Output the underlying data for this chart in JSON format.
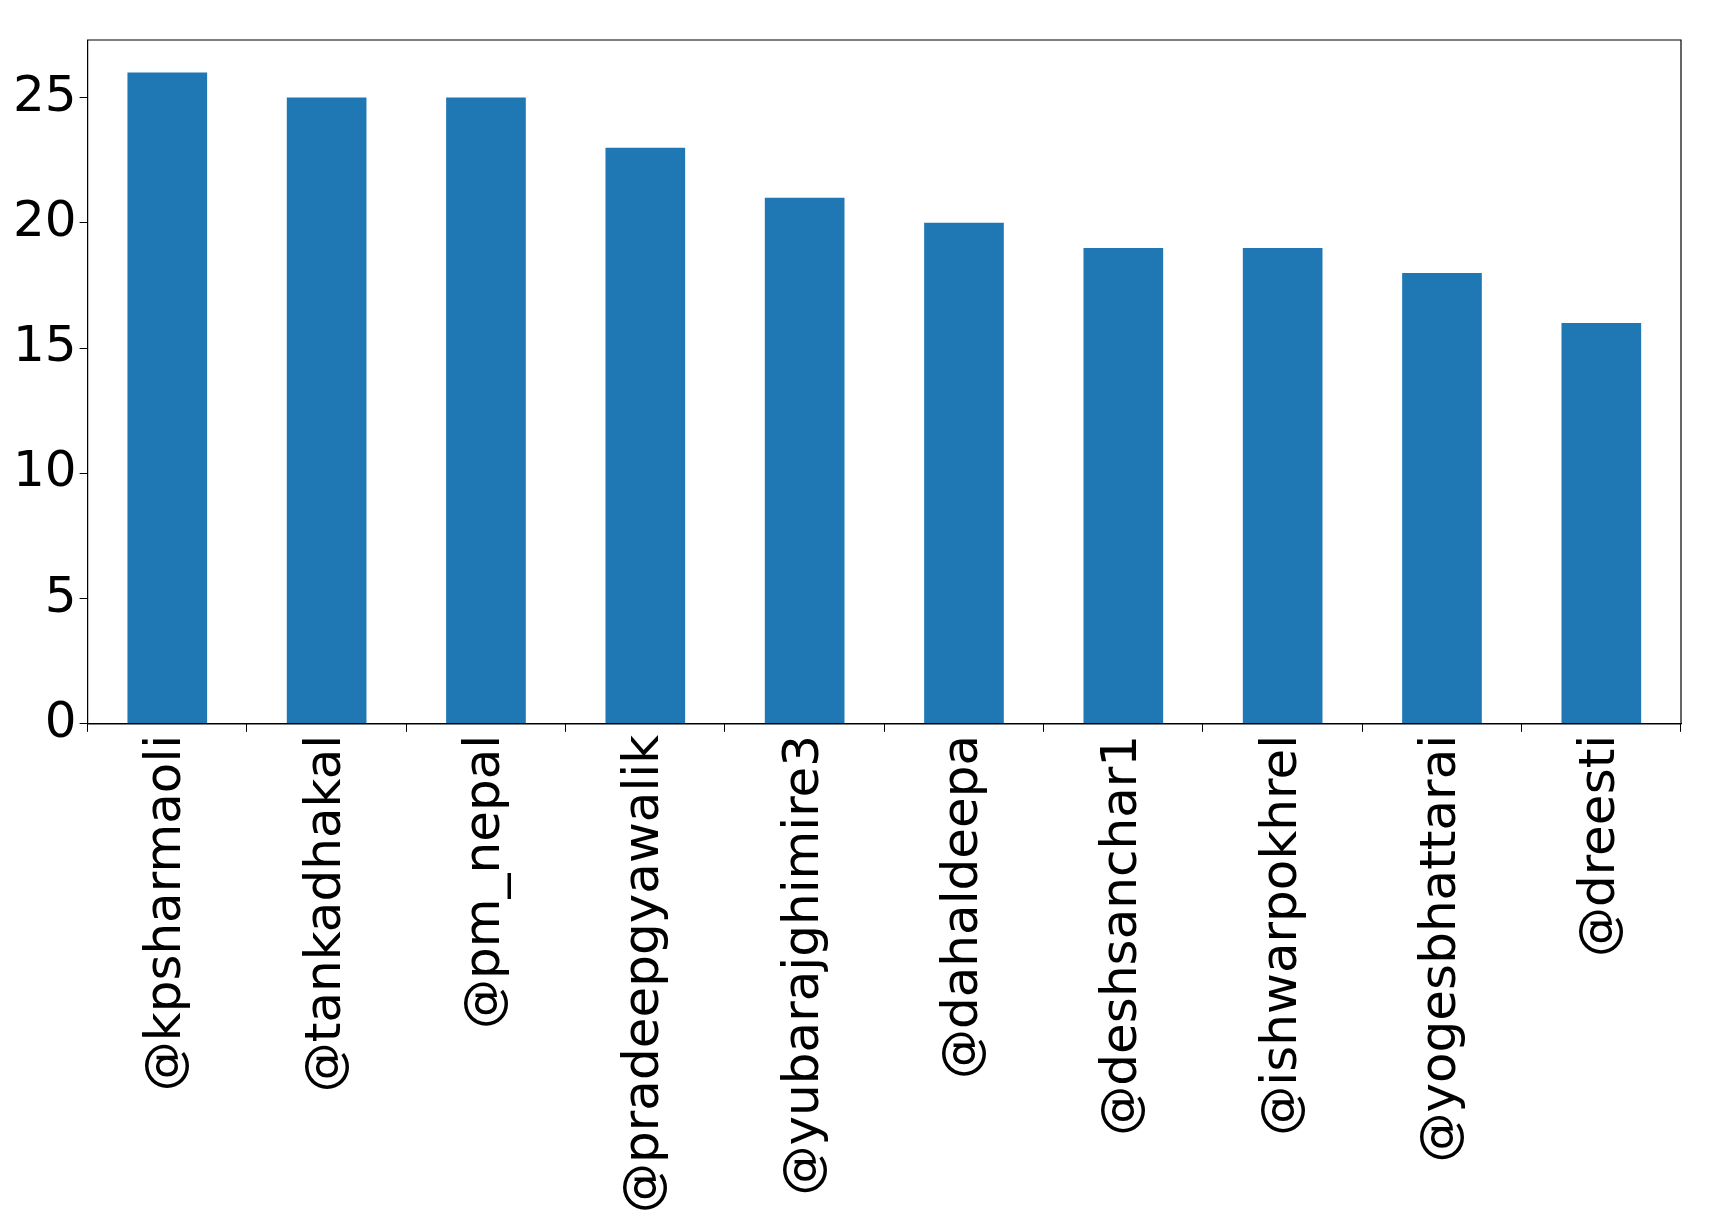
{
  "chart_data": {
    "type": "bar",
    "categories": [
      "@kpsharmaoli",
      "@tankadhakal",
      "@pm_nepal",
      "@pradeepgyawalik",
      "@yubarajghimire3",
      "@dahaldeepa",
      "@deshsanchar1",
      "@ishwarpokhrel",
      "@yogesbhattarai",
      "@dreesti"
    ],
    "values": [
      26,
      25,
      25,
      23,
      21,
      20,
      19,
      19,
      18,
      16
    ],
    "color": "#1f77b4",
    "ylim": [
      0,
      27.3
    ],
    "yticks": [
      0,
      5,
      10,
      15,
      20,
      25
    ],
    "grid": false,
    "legend": false
  }
}
